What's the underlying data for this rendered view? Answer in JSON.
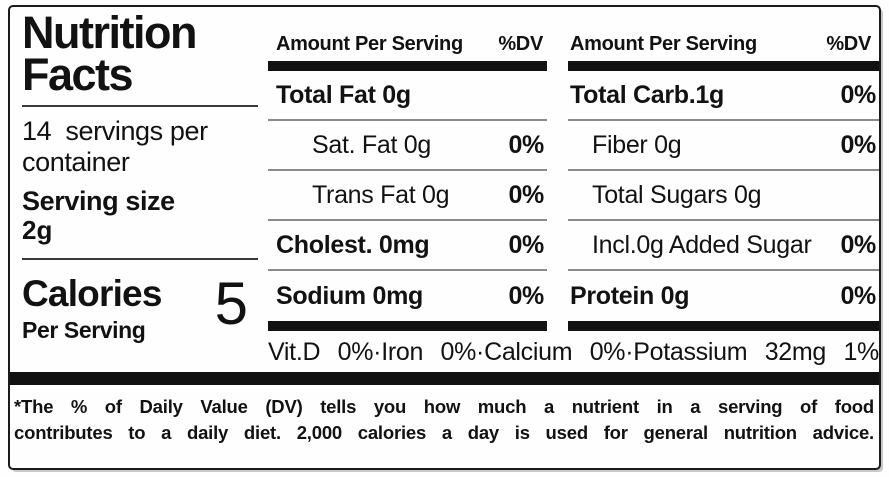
{
  "title": {
    "line1": "Nutrition",
    "line2": "Facts"
  },
  "serving_info": {
    "servings_per_container": "14  servings per\ncontainer",
    "serving_size_label": "Serving size",
    "serving_size_value": "2g"
  },
  "calories": {
    "label": "Calories",
    "sublabel": "Per Serving",
    "value": "5"
  },
  "columns": [
    {
      "header": {
        "amount": "Amount Per Serving",
        "dv": "%DV"
      },
      "rows": [
        {
          "label": "Total Fat 0g",
          "dv": ""
        },
        {
          "label": "Sat. Fat 0g",
          "dv": "0%"
        },
        {
          "label": "Trans Fat 0g",
          "dv": "0%"
        },
        {
          "label": "Cholest. 0mg",
          "dv": "0%"
        },
        {
          "label": "Sodium 0mg",
          "dv": "0%"
        }
      ]
    },
    {
      "header": {
        "amount": "Amount Per Serving",
        "dv": "%DV"
      },
      "rows": [
        {
          "label": "Total Carb.1g",
          "dv": "0%"
        },
        {
          "label": "Fiber 0g",
          "dv": "0%"
        },
        {
          "label": "Total Sugars 0g",
          "dv": ""
        },
        {
          "label": "Incl.0g Added Sugar",
          "dv": "0%"
        },
        {
          "label": "Protein 0g",
          "dv": "0%"
        }
      ]
    }
  ],
  "micronutrients": {
    "display": "Vit.D 0%·Iron 0%·Calcium 0%·Potassium 32mg 1%",
    "items": [
      {
        "name": "Vit.D",
        "dv": "0%"
      },
      {
        "name": "Iron",
        "dv": "0%"
      },
      {
        "name": "Calcium",
        "dv": "0%"
      },
      {
        "name": "Potassium",
        "amount": "32mg",
        "dv": "1%"
      }
    ]
  },
  "footnote": {
    "line1": "*The % of Daily Value (DV) tells you how much a nutrient in a serving of food",
    "line2": "contributes to a daily diet. 2,000 calories a day is used for general nutrition advice."
  },
  "colors": {
    "text": "#121212",
    "thick_bar": "#111111",
    "thin_rule": "#8a8a8a",
    "border": "#1b1b1b",
    "background": "#fefefe"
  }
}
